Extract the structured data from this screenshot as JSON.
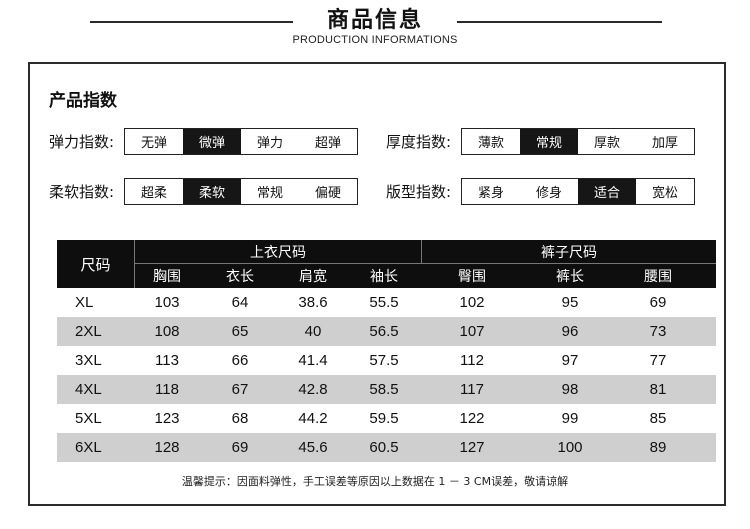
{
  "header": {
    "title": "商品信息",
    "subtitle": "PRODUCTION INFORMATIONS"
  },
  "section": {
    "title": "产品指数"
  },
  "indices": [
    {
      "label": "弹力指数:",
      "options": [
        "无弹",
        "微弹",
        "弹力",
        "超弹"
      ],
      "selected": "微弹"
    },
    {
      "label": "厚度指数:",
      "options": [
        "薄款",
        "常规",
        "厚款",
        "加厚"
      ],
      "selected": "常规"
    },
    {
      "label": "柔软指数:",
      "options": [
        "超柔",
        "柔软",
        "常规",
        "偏硬"
      ],
      "selected": "柔软"
    },
    {
      "label": "版型指数:",
      "options": [
        "紧身",
        "修身",
        "适合",
        "宽松"
      ],
      "selected": "适合"
    }
  ],
  "size_table": {
    "size_header": "尺码",
    "top_group": "上衣尺码",
    "bottom_group": "裤子尺码",
    "columns": [
      "胸围",
      "衣长",
      "肩宽",
      "袖长",
      "臀围",
      "裤长",
      "腰围"
    ],
    "rows": [
      {
        "size": "XL",
        "values": [
          "103",
          "64",
          "38.6",
          "55.5",
          "102",
          "95",
          "69"
        ]
      },
      {
        "size": "2XL",
        "values": [
          "108",
          "65",
          "40",
          "56.5",
          "107",
          "96",
          "73"
        ]
      },
      {
        "size": "3XL",
        "values": [
          "113",
          "66",
          "41.4",
          "57.5",
          "112",
          "97",
          "77"
        ]
      },
      {
        "size": "4XL",
        "values": [
          "118",
          "67",
          "42.8",
          "58.5",
          "117",
          "98",
          "81"
        ]
      },
      {
        "size": "5XL",
        "values": [
          "123",
          "68",
          "44.2",
          "59.5",
          "122",
          "99",
          "85"
        ]
      },
      {
        "size": "6XL",
        "values": [
          "128",
          "69",
          "45.6",
          "60.5",
          "127",
          "100",
          "89"
        ]
      }
    ]
  },
  "note": "温馨提示：因面料弹性，手工误差等原因以上数据在 1 － 3 CM误差，敬请谅解"
}
